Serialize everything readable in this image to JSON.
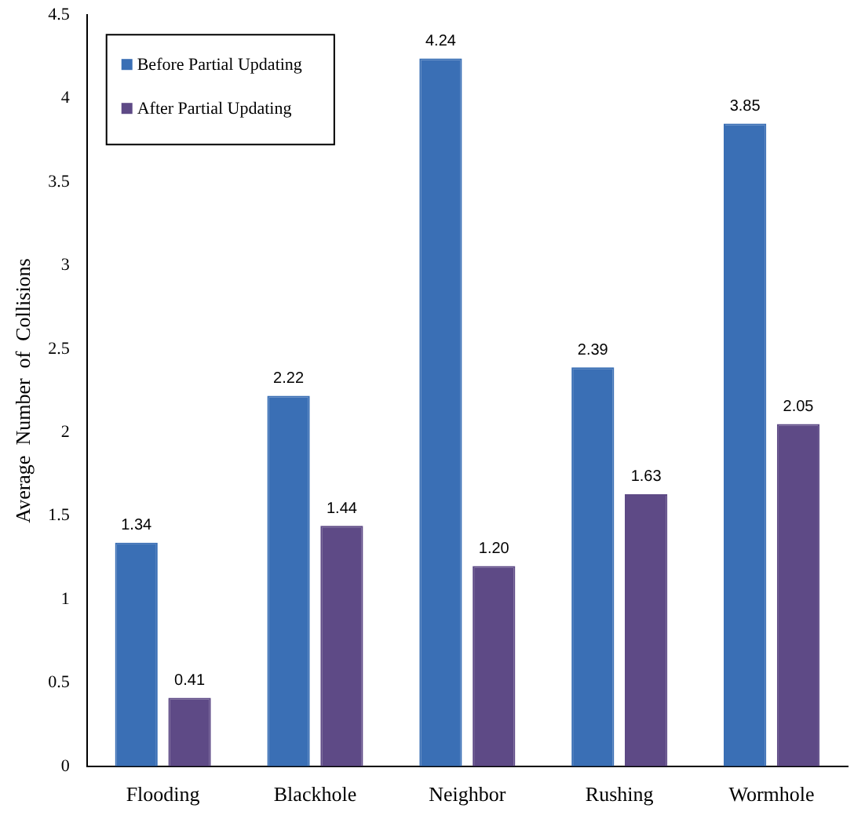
{
  "chart_data": {
    "type": "bar",
    "ylabel": "Average  Number  of  Collisions",
    "categories": [
      "Flooding",
      "Blackhole",
      "Neighbor",
      "Rushing",
      "Wormhole"
    ],
    "series": [
      {
        "name": "Before Partial Updating",
        "color": "#3a6fb5",
        "values": [
          1.34,
          2.22,
          4.24,
          2.39,
          3.85
        ],
        "value_labels": [
          "1.34",
          "2.22",
          "4.24",
          "2.39",
          "3.85"
        ]
      },
      {
        "name": "After Partial Updating",
        "color": "#5e4a86",
        "values": [
          0.41,
          1.44,
          1.2,
          1.63,
          2.05
        ],
        "value_labels": [
          "0.41",
          "1.44",
          "1.20",
          "1.63",
          "2.05"
        ]
      }
    ],
    "ylim": [
      0,
      4.5
    ],
    "yticks": [
      0,
      0.5,
      1,
      1.5,
      2,
      2.5,
      3,
      3.5,
      4,
      4.5
    ],
    "grid": false,
    "legend": "top left"
  }
}
